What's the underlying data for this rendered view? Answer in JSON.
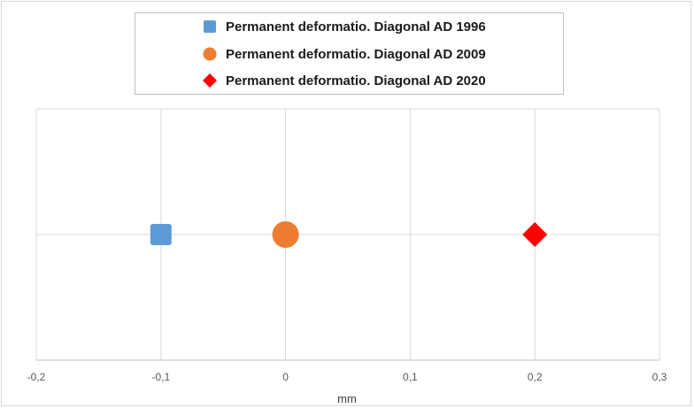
{
  "chart_data": {
    "type": "scatter",
    "title": "",
    "xlabel": "mm",
    "ylabel": "",
    "xlim": [
      -0.2,
      0.3
    ],
    "x_ticks": [
      -0.2,
      -0.1,
      0,
      0.1,
      0.2,
      0.3
    ],
    "x_tick_labels": [
      "-0,2",
      "-0,1",
      "0",
      "0,1",
      "0,2",
      "0,3"
    ],
    "grid": true,
    "legend_position": "top",
    "series": [
      {
        "name": "Permanent deformatio. Diagonal AD 1996",
        "marker": "square",
        "color": "#5b9bd5",
        "points": [
          {
            "x": -0.1,
            "y": 0
          }
        ]
      },
      {
        "name": "Permanent deformatio. Diagonal AD 2009",
        "marker": "circle",
        "color": "#ed7d31",
        "points": [
          {
            "x": 0,
            "y": 0
          }
        ]
      },
      {
        "name": "Permanent deformatio. Diagonal AD 2020",
        "marker": "diamond",
        "color": "#ff0000",
        "points": [
          {
            "x": 0.2,
            "y": 0
          }
        ]
      }
    ]
  }
}
